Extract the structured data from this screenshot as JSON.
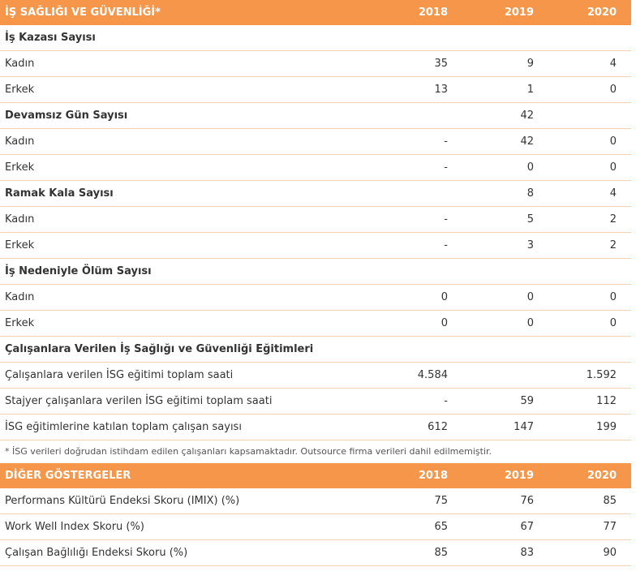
{
  "table1": {
    "header": {
      "title": "İŞ SAĞLIĞI VE GÜVENLİĞİ*",
      "years": [
        "2018",
        "2019",
        "2020"
      ]
    },
    "rows": [
      {
        "label": "İş Kazası Sayısı",
        "values": [
          "",
          "",
          ""
        ],
        "section": true
      },
      {
        "label": "Kadın",
        "values": [
          "35",
          "9",
          "4"
        ],
        "section": false
      },
      {
        "label": "Erkek",
        "values": [
          "13",
          "1",
          "0"
        ],
        "section": false
      },
      {
        "label": "Devamsız Gün Sayısı",
        "values": [
          "",
          "42",
          ""
        ],
        "section": true
      },
      {
        "label": "Kadın",
        "values": [
          "-",
          "42",
          "0"
        ],
        "section": false
      },
      {
        "label": "Erkek",
        "values": [
          "-",
          "0",
          "0"
        ],
        "section": false
      },
      {
        "label": "Ramak Kala Sayısı",
        "values": [
          "",
          "8",
          "4"
        ],
        "section": true
      },
      {
        "label": "Kadın",
        "values": [
          "-",
          "5",
          "2"
        ],
        "section": false
      },
      {
        "label": "Erkek",
        "values": [
          "-",
          "3",
          "2"
        ],
        "section": false
      },
      {
        "label": "İş Nedeniyle Ölüm Sayısı",
        "values": [
          "",
          "",
          ""
        ],
        "section": true
      },
      {
        "label": "Kadın",
        "values": [
          "0",
          "0",
          "0"
        ],
        "section": false
      },
      {
        "label": "Erkek",
        "values": [
          "0",
          "0",
          "0"
        ],
        "section": false
      },
      {
        "label": "Çalışanlara Verilen İş Sağlığı ve Güvenliği Eğitimleri",
        "values": [
          "",
          "",
          ""
        ],
        "section": true
      },
      {
        "label": "Çalışanlara verilen İSG eğitimi toplam saati",
        "values": [
          "4.584",
          "",
          "1.592"
        ],
        "section": false
      },
      {
        "label": "Stajyer çalışanlara verilen İSG eğitimi toplam saati",
        "values": [
          "-",
          "59",
          "112"
        ],
        "section": false
      },
      {
        "label": "İSG eğitimlerine katılan toplam çalışan sayısı",
        "values": [
          "612",
          "147",
          "199"
        ],
        "section": false
      }
    ],
    "footnote": "* İSG verileri doğrudan istihdam edilen çalışanları kapsamaktadır. Outsource firma verileri dahil edilmemiştir."
  },
  "table2": {
    "header": {
      "title": "DİĞER GÖSTERGELER",
      "years": [
        "2018",
        "2019",
        "2020"
      ]
    },
    "rows": [
      {
        "label": "Performans Kültürü Endeksi Skoru (IMIX) (%)",
        "values": [
          "75",
          "76",
          "85"
        ]
      },
      {
        "label": "Work Well Index Skoru (%)",
        "values": [
          "65",
          "67",
          "77"
        ]
      },
      {
        "label": "Çalışan Bağlılığı Endeksi Skoru (%)",
        "values": [
          "85",
          "83",
          "90"
        ]
      }
    ]
  },
  "colors": {
    "header_bg": "#f5964a",
    "header_text": "#ffffff",
    "row_border": "#f3d2b3",
    "text": "#333333"
  }
}
